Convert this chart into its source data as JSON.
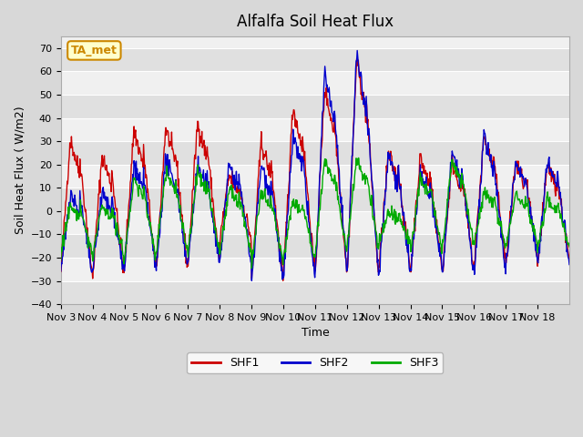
{
  "title": "Alfalfa Soil Heat Flux",
  "xlabel": "Time",
  "ylabel": "Soil Heat Flux ( W/m2)",
  "ylim": [
    -40,
    75
  ],
  "yticks": [
    -40,
    -30,
    -20,
    -10,
    0,
    10,
    20,
    30,
    40,
    50,
    60,
    70
  ],
  "background_color": "#d8d8d8",
  "plot_bg_color": "#f0f0f0",
  "legend_entries": [
    "SHF1",
    "SHF2",
    "SHF3"
  ],
  "annotation_text": "TA_met",
  "annotation_bg": "#ffffcc",
  "annotation_border": "#cc8800",
  "line_colors": {
    "SHF1": "#cc0000",
    "SHF2": "#0000cc",
    "SHF3": "#00aa00"
  },
  "x_tick_labels": [
    "Nov 3",
    "Nov 4",
    "Nov 5",
    "Nov 6",
    "Nov 7",
    "Nov 8",
    "Nov 9",
    "Nov 10",
    "Nov 11",
    "Nov 12",
    "Nov 13",
    "Nov 14",
    "Nov 15",
    "Nov 16",
    "Nov 17",
    "Nov 18"
  ],
  "num_days": 16,
  "n_per_day": 60,
  "shf1_peaks": [
    31,
    24,
    35,
    36,
    38,
    15,
    30,
    45,
    53,
    65,
    25,
    23,
    21,
    32,
    21,
    20
  ],
  "shf1_troughs": [
    -27,
    -28,
    -25,
    -25,
    -22,
    -12,
    -30,
    -28,
    -25,
    -27,
    -25,
    -25,
    -25,
    -22,
    -22,
    -22
  ],
  "shf2_peaks": [
    8,
    8,
    20,
    22,
    20,
    20,
    20,
    33,
    60,
    67,
    25,
    16,
    25,
    32,
    22,
    22
  ],
  "shf2_troughs": [
    -27,
    -26,
    -25,
    -25,
    -22,
    -22,
    -30,
    -30,
    -27,
    -27,
    -27,
    -25,
    -27,
    -27,
    -22,
    -22
  ],
  "shf3_peaks": [
    2,
    3,
    14,
    17,
    17,
    10,
    8,
    5,
    22,
    22,
    0,
    15,
    22,
    8,
    8,
    5
  ],
  "shf3_troughs": [
    -18,
    -20,
    -20,
    -18,
    -18,
    -18,
    -22,
    -20,
    -18,
    -15,
    -15,
    -18,
    -15,
    -15,
    -15,
    -15
  ],
  "noise_shf1": 2.0,
  "noise_shf2": 2.0,
  "noise_shf3": 1.5,
  "random_seed": 42
}
